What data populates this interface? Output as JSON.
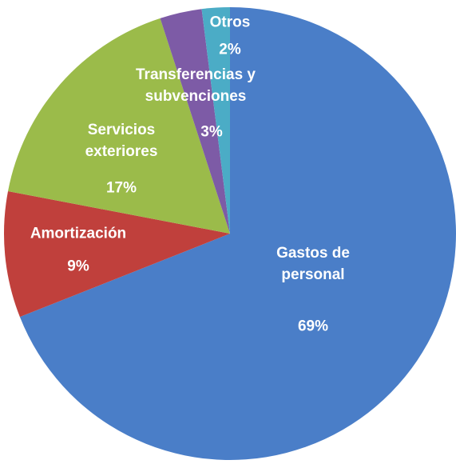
{
  "chart_data": {
    "type": "pie",
    "categories": [
      "Gastos de personal",
      "Amortización",
      "Servicios exteriores",
      "Transferencias y subvenciones",
      "Otros"
    ],
    "values": [
      69,
      9,
      17,
      3,
      2
    ],
    "value_labels": [
      "69%",
      "9%",
      "17%",
      "3%",
      "2%"
    ],
    "colors": [
      "#4a7ec8",
      "#c0403c",
      "#9bbb4a",
      "#7d5ba6",
      "#4bacc6"
    ]
  }
}
